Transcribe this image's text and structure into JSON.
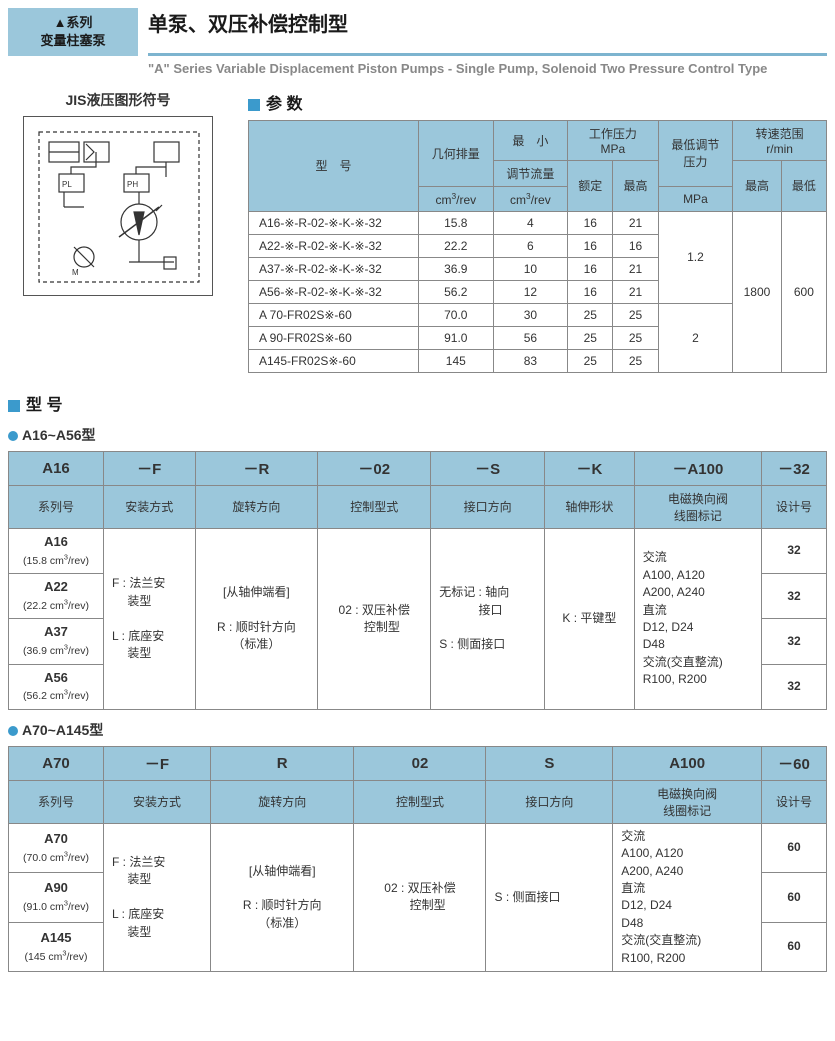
{
  "header": {
    "badge_line1": "▲系列",
    "badge_line2": "变量柱塞泵",
    "title_cn": "单泵、双压补偿控制型",
    "subtitle_en": "\"A\" Series Variable Displacement Piston Pumps - Single Pump, Solenoid Two Pressure Control Type"
  },
  "diagram": {
    "title": "JIS液压图形符号"
  },
  "params": {
    "title": "参 数",
    "headers": {
      "model": "型　号",
      "disp": "几何排量",
      "disp_unit": "cm³/rev",
      "minflow": "最　小",
      "minflow2": "调节流量",
      "minflow_unit": "cm³/rev",
      "workp": "工作压力",
      "workp_unit": "MPa",
      "rated": "额定",
      "max": "最高",
      "minadj": "最低调节",
      "minadj2": "压力",
      "minadj_unit": "MPa",
      "speed": "转速范围",
      "speed_unit": "r/min",
      "shi": "最高",
      "slo": "最低"
    },
    "rows": [
      {
        "model": "A16-※-R-02-※-K-※-32",
        "disp": "15.8",
        "minflow": "4",
        "rated": "16",
        "max": "21"
      },
      {
        "model": "A22-※-R-02-※-K-※-32",
        "disp": "22.2",
        "minflow": "6",
        "rated": "16",
        "max": "16"
      },
      {
        "model": "A37-※-R-02-※-K-※-32",
        "disp": "36.9",
        "minflow": "10",
        "rated": "16",
        "max": "21"
      },
      {
        "model": "A56-※-R-02-※-K-※-32",
        "disp": "56.2",
        "minflow": "12",
        "rated": "16",
        "max": "21"
      },
      {
        "model": "A 70-FR02S※-60",
        "disp": "70.0",
        "minflow": "30",
        "rated": "25",
        "max": "25"
      },
      {
        "model": "A 90-FR02S※-60",
        "disp": "91.0",
        "minflow": "56",
        "rated": "25",
        "max": "25"
      },
      {
        "model": "A145-FR02S※-60",
        "disp": "145",
        "minflow": "83",
        "rated": "25",
        "max": "25"
      }
    ],
    "minadj_top": "1.2",
    "minadj_bot": "2",
    "speed_hi": "1800",
    "speed_lo": "600"
  },
  "model_section": {
    "title": "型 号",
    "sub1_title": "A16~A56型",
    "sub1": {
      "top": [
        "A16",
        "－F",
        "－R",
        "－02",
        "－S",
        "－K",
        "－A100",
        "－32"
      ],
      "labels": [
        "系列号",
        "安装方式",
        "旋转方向",
        "控制型式",
        "接口方向",
        "轴伸形状",
        "电磁换向阀\n线圈标记",
        "设计号"
      ],
      "series": [
        {
          "n": "A16",
          "u": "(15.8 cm³/rev)"
        },
        {
          "n": "A22",
          "u": "(22.2 cm³/rev)"
        },
        {
          "n": "A37",
          "u": "(36.9 cm³/rev)"
        },
        {
          "n": "A56",
          "u": "(56.2 cm³/rev)"
        }
      ],
      "mount": "F : 法兰安\n　  装型\n\nL : 底座安\n　  装型",
      "rotation": "[从轴伸端看]\n\nR : 顺时针方向\n（标准）",
      "control": "02 : 双压补偿\n　   控制型",
      "port": "无标记 : 轴向\n　　　  接口\n\nS : 侧面接口",
      "shaft": "K : 平键型",
      "coil": "交流\nA100, A120\nA200, A240\n直流\nD12, D24\nD48\n交流(交直整流)\nR100, R200",
      "design": "32"
    },
    "sub2_title": "A70~A145型",
    "sub2": {
      "top": [
        "A70",
        "－F",
        "R",
        "02",
        "S",
        "A100",
        "－60"
      ],
      "labels": [
        "系列号",
        "安装方式",
        "旋转方向",
        "控制型式",
        "接口方向",
        "电磁换向阀\n线圈标记",
        "设计号"
      ],
      "series": [
        {
          "n": "A70",
          "u": "(70.0 cm³/rev)"
        },
        {
          "n": "A90",
          "u": "(91.0 cm³/rev)"
        },
        {
          "n": "A145",
          "u": "(145 cm³/rev)"
        }
      ],
      "mount": "F : 法兰安\n　  装型\n\nL : 底座安\n　  装型",
      "rotation": "[从轴伸端看]\n\nR : 顺时针方向\n（标准）",
      "control": "02 : 双压补偿\n　   控制型",
      "port": "S : 侧面接口",
      "coil": "交流\nA100, A120\nA200, A240\n直流\nD12, D24\nD48\n交流(交直整流)\nR100, R200",
      "design": "60"
    }
  },
  "colors": {
    "header_bg": "#9bc7db",
    "accent": "#3b9acc",
    "border": "#888888"
  }
}
